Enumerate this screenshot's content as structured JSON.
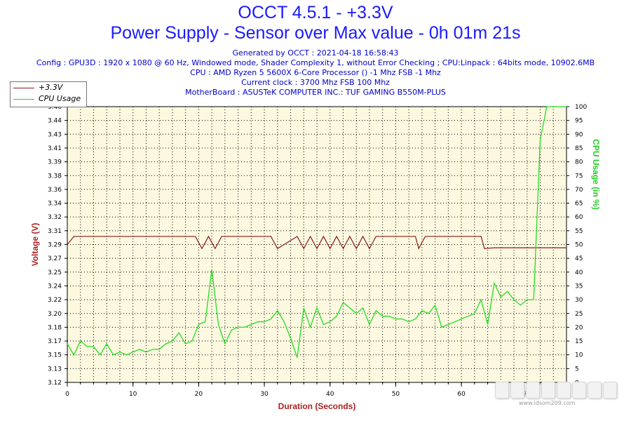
{
  "header": {
    "title": "OCCT 4.5.1 - +3.3V",
    "subtitle": "Power Supply - Sensor over Max value - 0h 01m 21s",
    "generated": "Generated by OCCT : 2021-04-18 16:58:43",
    "config": "Config : GPU3D : 1920 x 1080 @ 60 Hz, Windowed mode, Shader Complexity 1, without Error Checking ; CPU:Linpack : 64bits mode, 10902.6MB",
    "cpu": "CPU : AMD Ryzen 5 5600X 6-Core Processor () -1 Mhz FSB -1 Mhz",
    "clock": "Current clock : 3700 Mhz FSB 100 Mhz",
    "motherboard": "MotherBoard : ASUSTeK COMPUTER INC.: TUF GAMING B550M-PLUS"
  },
  "watermark": {
    "text": "www.idsom209.com"
  },
  "colors": {
    "plot_bg": "#fdf9e0",
    "voltage": "#8b1a1a",
    "cpu": "#22dd22",
    "left_axis_label": "#aa2222",
    "right_axis_label": "#22cc22",
    "x_axis_label": "#aa2222"
  },
  "chart_data": {
    "type": "line",
    "title": "OCCT 4.5.1 - +3.3V",
    "subtitle": "Power Supply - Sensor over Max value - 0h 01m 21s",
    "xlabel": "Duration (Seconds)",
    "ylabel": "Voltage (V)",
    "y2label": "CPU Usage (in %)",
    "xlim": [
      0,
      76
    ],
    "ylim": [
      3.12,
      3.46
    ],
    "y2lim": [
      0,
      100
    ],
    "x_ticks": [
      0,
      10,
      20,
      30,
      40,
      50,
      60,
      70
    ],
    "y_ticks": [
      "3.12",
      "3.13",
      "3.15",
      "3.17",
      "3.18",
      "3.20",
      "3.22",
      "3.24",
      "3.25",
      "3.27",
      "3.29",
      "3.31",
      "3.32",
      "3.34",
      "3.36",
      "3.38",
      "3.39",
      "3.41",
      "3.43",
      "3.44",
      "3.46"
    ],
    "y2_ticks": [
      0,
      5,
      10,
      15,
      20,
      25,
      30,
      35,
      40,
      45,
      50,
      55,
      60,
      65,
      70,
      75,
      80,
      85,
      90,
      95,
      100
    ],
    "legend_position": "top-left",
    "grid": true,
    "series": [
      {
        "name": "+3.3V",
        "axis": "left",
        "points": [
          [
            0,
            3.29
          ],
          [
            1,
            3.3
          ],
          [
            2,
            3.3
          ],
          [
            5,
            3.3
          ],
          [
            10,
            3.3
          ],
          [
            15,
            3.3
          ],
          [
            19.5,
            3.3
          ],
          [
            20.5,
            3.285
          ],
          [
            21.5,
            3.3
          ],
          [
            22.5,
            3.285
          ],
          [
            23.5,
            3.3
          ],
          [
            30,
            3.3
          ],
          [
            31,
            3.3
          ],
          [
            32,
            3.285
          ],
          [
            34,
            3.295
          ],
          [
            35,
            3.3
          ],
          [
            36,
            3.285
          ],
          [
            37,
            3.3
          ],
          [
            38,
            3.285
          ],
          [
            39,
            3.3
          ],
          [
            40,
            3.285
          ],
          [
            41,
            3.3
          ],
          [
            42,
            3.285
          ],
          [
            43,
            3.3
          ],
          [
            44,
            3.285
          ],
          [
            45,
            3.3
          ],
          [
            46,
            3.285
          ],
          [
            47,
            3.3
          ],
          [
            48,
            3.3
          ],
          [
            49,
            3.3
          ],
          [
            50,
            3.3
          ],
          [
            51,
            3.3
          ],
          [
            52,
            3.3
          ],
          [
            53,
            3.3
          ],
          [
            53.5,
            3.285
          ],
          [
            54.5,
            3.3
          ],
          [
            55,
            3.3
          ],
          [
            60,
            3.3
          ],
          [
            63,
            3.3
          ],
          [
            63.5,
            3.285
          ],
          [
            65,
            3.286
          ],
          [
            70,
            3.286
          ],
          [
            76,
            3.286
          ]
        ]
      },
      {
        "name": "CPU Usage",
        "axis": "right",
        "points": [
          [
            0,
            14
          ],
          [
            1,
            10
          ],
          [
            2,
            15
          ],
          [
            3,
            13
          ],
          [
            4,
            13
          ],
          [
            5,
            10
          ],
          [
            6,
            14
          ],
          [
            7,
            10
          ],
          [
            8,
            11
          ],
          [
            9,
            10
          ],
          [
            10,
            11
          ],
          [
            11,
            12
          ],
          [
            12,
            11
          ],
          [
            13,
            12
          ],
          [
            14,
            12
          ],
          [
            15,
            14
          ],
          [
            16,
            15
          ],
          [
            17,
            18
          ],
          [
            18,
            14
          ],
          [
            19,
            15
          ],
          [
            20,
            21
          ],
          [
            21,
            22
          ],
          [
            22,
            41
          ],
          [
            23,
            21
          ],
          [
            24,
            14
          ],
          [
            25,
            19
          ],
          [
            26,
            20
          ],
          [
            27,
            20
          ],
          [
            28,
            21
          ],
          [
            29,
            22
          ],
          [
            30,
            22
          ],
          [
            31,
            23
          ],
          [
            32,
            26
          ],
          [
            33,
            22
          ],
          [
            34,
            16
          ],
          [
            35,
            9
          ],
          [
            36,
            27
          ],
          [
            37,
            20
          ],
          [
            38,
            27
          ],
          [
            39,
            21
          ],
          [
            40,
            22
          ],
          [
            41,
            24
          ],
          [
            42,
            29
          ],
          [
            43,
            27
          ],
          [
            44,
            25
          ],
          [
            45,
            27
          ],
          [
            46,
            21
          ],
          [
            47,
            26
          ],
          [
            48,
            24
          ],
          [
            49,
            24
          ],
          [
            50,
            23
          ],
          [
            51,
            23
          ],
          [
            52,
            22
          ],
          [
            53,
            23
          ],
          [
            54,
            26
          ],
          [
            55,
            25
          ],
          [
            56,
            28
          ],
          [
            57,
            20
          ],
          [
            58,
            21
          ],
          [
            59,
            22
          ],
          [
            60,
            23
          ],
          [
            61,
            24
          ],
          [
            62,
            25
          ],
          [
            63,
            30
          ],
          [
            64,
            21
          ],
          [
            65,
            36
          ],
          [
            66,
            31
          ],
          [
            67,
            33
          ],
          [
            68,
            30
          ],
          [
            69,
            28
          ],
          [
            70,
            30
          ],
          [
            71,
            30
          ],
          [
            72,
            88
          ],
          [
            73,
            100
          ],
          [
            74,
            100
          ],
          [
            75,
            100
          ],
          [
            76,
            100
          ]
        ]
      }
    ]
  }
}
